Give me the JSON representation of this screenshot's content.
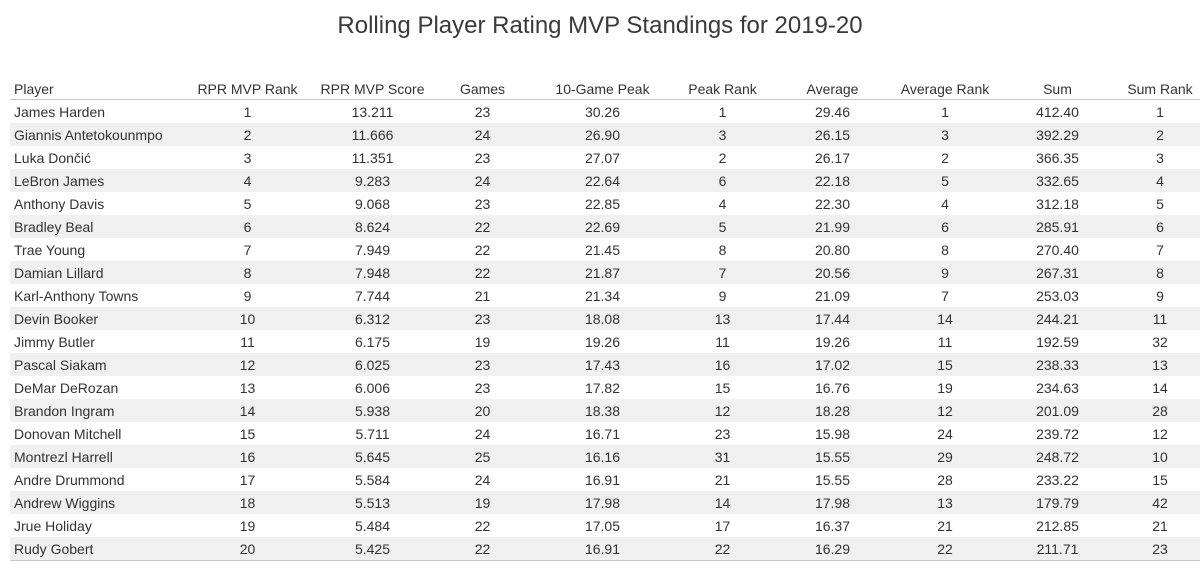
{
  "chart_data": {
    "type": "table",
    "title": "Rolling Player Rating MVP Standings for 2019-20",
    "columns": [
      "Player",
      "RPR MVP Rank",
      "RPR MVP Score",
      "Games",
      "10-Game Peak",
      "Peak Rank",
      "Average",
      "Average Rank",
      "Sum",
      "Sum Rank"
    ],
    "rows": [
      [
        "James Harden",
        "1",
        "13.211",
        "23",
        "30.26",
        "1",
        "29.46",
        "1",
        "412.40",
        "1"
      ],
      [
        "Giannis Antetokounmpo",
        "2",
        "11.666",
        "24",
        "26.90",
        "3",
        "26.15",
        "3",
        "392.29",
        "2"
      ],
      [
        "Luka Dončić",
        "3",
        "11.351",
        "23",
        "27.07",
        "2",
        "26.17",
        "2",
        "366.35",
        "3"
      ],
      [
        "LeBron James",
        "4",
        "9.283",
        "24",
        "22.64",
        "6",
        "22.18",
        "5",
        "332.65",
        "4"
      ],
      [
        "Anthony Davis",
        "5",
        "9.068",
        "23",
        "22.85",
        "4",
        "22.30",
        "4",
        "312.18",
        "5"
      ],
      [
        "Bradley Beal",
        "6",
        "8.624",
        "22",
        "22.69",
        "5",
        "21.99",
        "6",
        "285.91",
        "6"
      ],
      [
        "Trae Young",
        "7",
        "7.949",
        "22",
        "21.45",
        "8",
        "20.80",
        "8",
        "270.40",
        "7"
      ],
      [
        "Damian Lillard",
        "8",
        "7.948",
        "22",
        "21.87",
        "7",
        "20.56",
        "9",
        "267.31",
        "8"
      ],
      [
        "Karl-Anthony Towns",
        "9",
        "7.744",
        "21",
        "21.34",
        "9",
        "21.09",
        "7",
        "253.03",
        "9"
      ],
      [
        "Devin Booker",
        "10",
        "6.312",
        "23",
        "18.08",
        "13",
        "17.44",
        "14",
        "244.21",
        "11"
      ],
      [
        "Jimmy Butler",
        "11",
        "6.175",
        "19",
        "19.26",
        "11",
        "19.26",
        "11",
        "192.59",
        "32"
      ],
      [
        "Pascal Siakam",
        "12",
        "6.025",
        "23",
        "17.43",
        "16",
        "17.02",
        "15",
        "238.33",
        "13"
      ],
      [
        "DeMar DeRozan",
        "13",
        "6.006",
        "23",
        "17.82",
        "15",
        "16.76",
        "19",
        "234.63",
        "14"
      ],
      [
        "Brandon Ingram",
        "14",
        "5.938",
        "20",
        "18.38",
        "12",
        "18.28",
        "12",
        "201.09",
        "28"
      ],
      [
        "Donovan Mitchell",
        "15",
        "5.711",
        "24",
        "16.71",
        "23",
        "15.98",
        "24",
        "239.72",
        "12"
      ],
      [
        "Montrezl Harrell",
        "16",
        "5.645",
        "25",
        "16.16",
        "31",
        "15.55",
        "29",
        "248.72",
        "10"
      ],
      [
        "Andre Drummond",
        "17",
        "5.584",
        "24",
        "16.91",
        "21",
        "15.55",
        "28",
        "233.22",
        "15"
      ],
      [
        "Andrew Wiggins",
        "18",
        "5.513",
        "19",
        "17.98",
        "14",
        "17.98",
        "13",
        "179.79",
        "42"
      ],
      [
        "Jrue Holiday",
        "19",
        "5.484",
        "22",
        "17.05",
        "17",
        "16.37",
        "21",
        "212.85",
        "21"
      ],
      [
        "Rudy Gobert",
        "20",
        "5.425",
        "22",
        "16.91",
        "22",
        "16.29",
        "22",
        "211.71",
        "23"
      ]
    ]
  }
}
